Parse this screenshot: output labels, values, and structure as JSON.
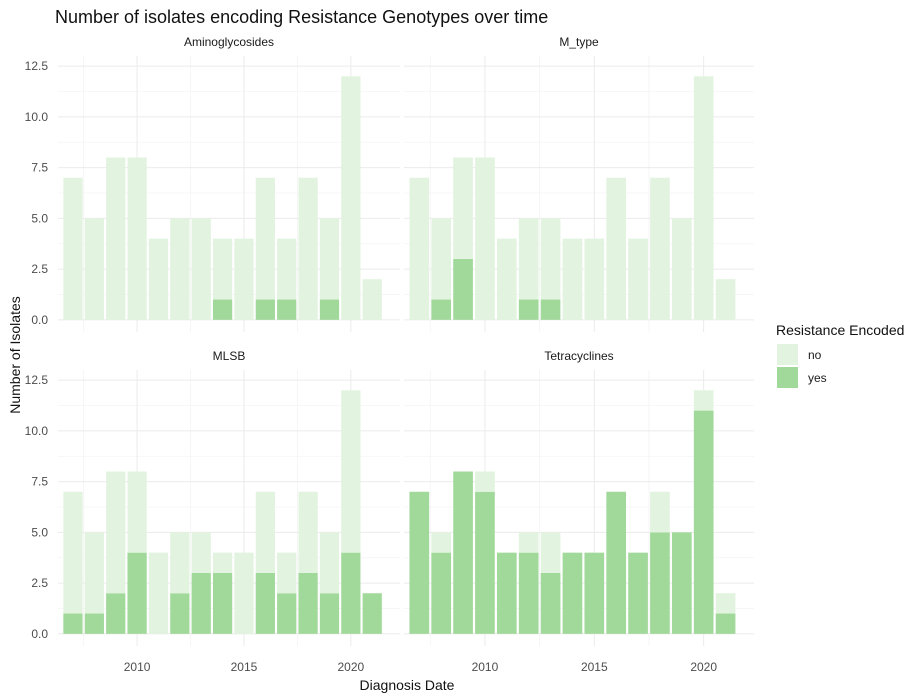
{
  "chart_data": {
    "type": "bar",
    "stacked": true,
    "title": "Number of isolates encoding Resistance Genotypes over time",
    "xlabel": "Diagnosis Date",
    "ylabel": "Number of Isolates",
    "x": [
      2007,
      2008,
      2009,
      2010,
      2011,
      2012,
      2013,
      2014,
      2015,
      2016,
      2017,
      2018,
      2019,
      2020,
      2021
    ],
    "x_ticks": [
      2010,
      2015,
      2020
    ],
    "x_tick_labels": [
      "2010",
      "2015",
      "2020"
    ],
    "xlim": [
      2006.3,
      2022.3
    ],
    "y_ticks": [
      0,
      2.5,
      5,
      7.5,
      10,
      12.5
    ],
    "y_tick_labels": [
      "0.0",
      "2.5",
      "5.0",
      "7.5",
      "10.0",
      "12.5"
    ],
    "ylim": [
      -0.6,
      13
    ],
    "grid": true,
    "legend": {
      "title": "Resistance Encoded",
      "position": "right",
      "entries": [
        {
          "label": "no",
          "color": "#e2f4df"
        },
        {
          "label": "yes",
          "color": "#a1d99b"
        }
      ]
    },
    "facets": [
      {
        "label": "Aminoglycosides",
        "totals": [
          7,
          5,
          8,
          8,
          4,
          5,
          5,
          4,
          4,
          7,
          4,
          7,
          5,
          12,
          2
        ],
        "yes": [
          0,
          0,
          0,
          0,
          0,
          0,
          0,
          1,
          0,
          1,
          1,
          0,
          1,
          0,
          0
        ]
      },
      {
        "label": "M_type",
        "totals": [
          7,
          5,
          8,
          8,
          4,
          5,
          5,
          4,
          4,
          7,
          4,
          7,
          5,
          12,
          2
        ],
        "yes": [
          0,
          1,
          3,
          0,
          0,
          1,
          1,
          0,
          0,
          0,
          0,
          0,
          0,
          0,
          0
        ]
      },
      {
        "label": "MLSB",
        "totals": [
          7,
          5,
          8,
          8,
          4,
          5,
          5,
          4,
          4,
          7,
          4,
          7,
          5,
          12,
          2
        ],
        "yes": [
          1,
          1,
          2,
          4,
          0,
          2,
          3,
          3,
          0,
          3,
          2,
          3,
          2,
          4,
          2
        ]
      },
      {
        "label": "Tetracyclines",
        "totals": [
          7,
          5,
          8,
          8,
          4,
          5,
          5,
          4,
          4,
          7,
          4,
          7,
          5,
          12,
          2
        ],
        "yes": [
          7,
          4,
          8,
          7,
          4,
          4,
          3,
          4,
          4,
          7,
          4,
          5,
          5,
          11,
          1
        ]
      }
    ]
  }
}
